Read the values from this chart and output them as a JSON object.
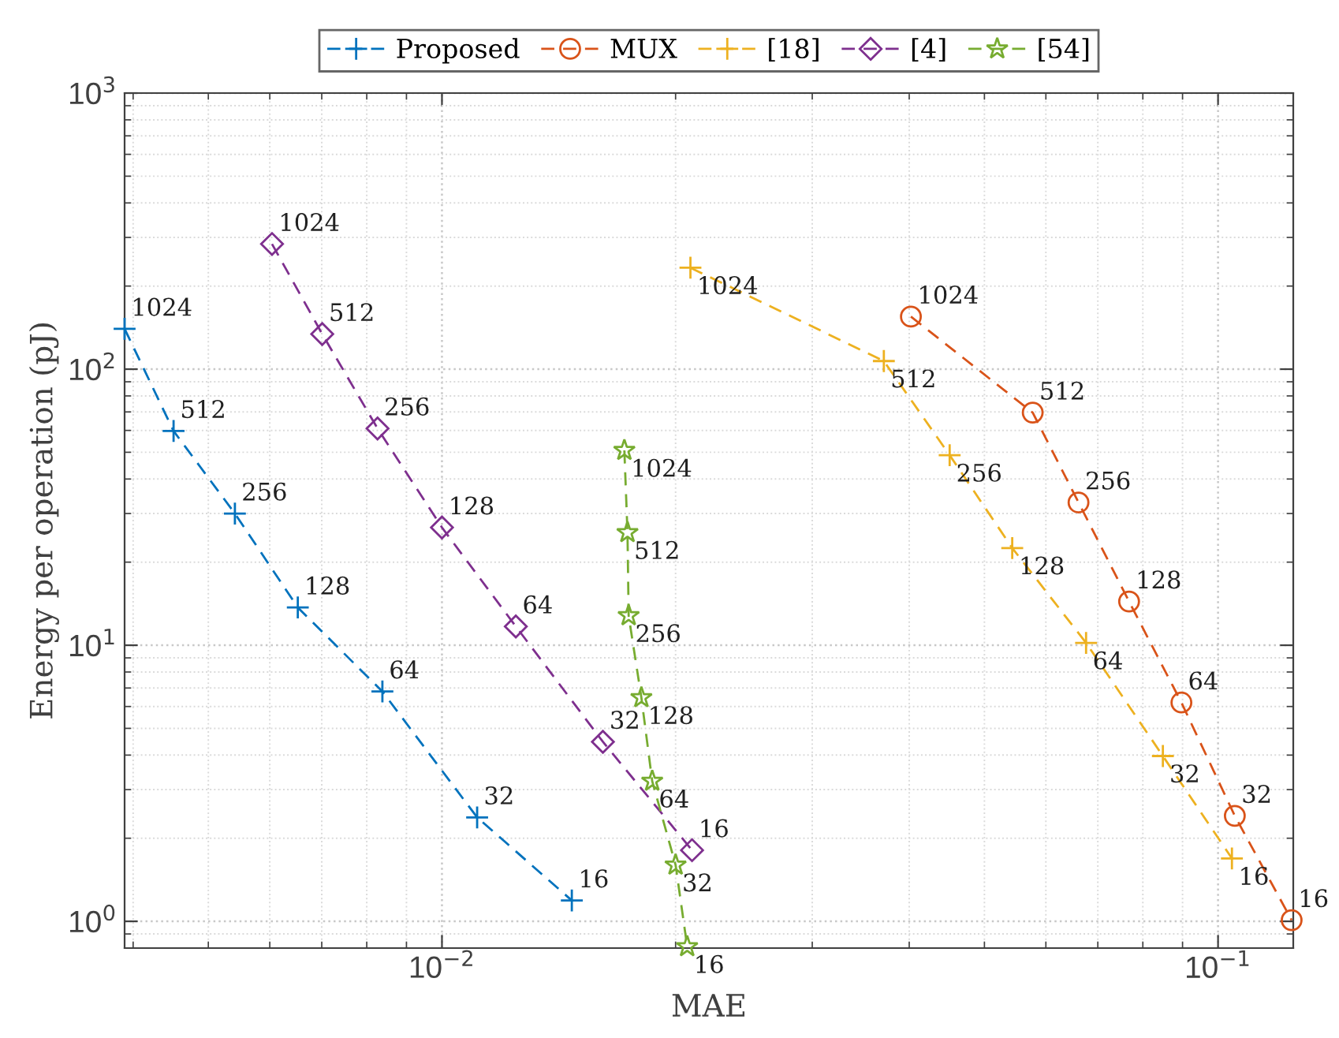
{
  "chart_data": {
    "type": "line",
    "xlabel": "MAE",
    "ylabel": "Energy per operation (pJ)",
    "log": "xy",
    "xlim": [
      0.0039,
      0.125
    ],
    "ylim": [
      0.8,
      1000
    ],
    "xticks": [
      {
        "value": 0.01,
        "label": "10$^{−2}$"
      },
      {
        "value": 0.1,
        "label": "10$^{−1}$"
      }
    ],
    "yticks": [
      {
        "value": 1,
        "label": "10$^{0}$"
      },
      {
        "value": 10,
        "label": "10$^{1}$"
      },
      {
        "value": 100,
        "label": "10$^{2}$"
      },
      {
        "value": 1000,
        "label": "10$^{3}$"
      }
    ],
    "grid": true,
    "legend": "top",
    "line_style": "dashed",
    "series": [
      {
        "name": "Proposed",
        "color": "#0072bd",
        "marker": "cross",
        "x": [
          0.0039,
          0.00451,
          0.00541,
          0.00652,
          0.00838,
          0.0111,
          0.0147
        ],
        "values": [
          140,
          59.7,
          30,
          13.7,
          6.8,
          2.38,
          1.19
        ]
      },
      {
        "name": "MUX",
        "color": "#d95319",
        "marker": "circle",
        "x": [
          0.0402,
          0.0577,
          0.0661,
          0.0768,
          0.0897,
          0.1051,
          0.1244
        ],
        "values": [
          155,
          69.6,
          32.9,
          14.4,
          6.2,
          2.41,
          1.01
        ]
      },
      {
        "name": "[18]",
        "color": "#edb120",
        "marker": "cross",
        "x": [
          0.0209,
          0.0371,
          0.0451,
          0.0543,
          0.0676,
          0.0849,
          0.1042
        ],
        "values": [
          233,
          107,
          48.8,
          22.5,
          10.2,
          3.97,
          1.69
        ]
      },
      {
        "name": "[4]",
        "color": "#7e2f8e",
        "marker": "diamond",
        "x": [
          0.00604,
          0.00701,
          0.00826,
          0.01,
          0.01245,
          0.01612,
          0.021
        ],
        "values": [
          284,
          134,
          61,
          26.7,
          11.7,
          4.47,
          1.81
        ]
      },
      {
        "name": "[54]",
        "color": "#77ac30",
        "marker": "star",
        "x": [
          0.01718,
          0.01734,
          0.0174,
          0.01807,
          0.01866,
          0.02,
          0.0207
        ],
        "values": [
          50.8,
          25.6,
          12.8,
          6.46,
          3.22,
          1.6,
          0.81
        ]
      }
    ],
    "annotations": [
      {
        "text": "1024",
        "x": 0.0039,
        "y": 140
      },
      {
        "text": "512",
        "x": 0.00451,
        "y": 59.7
      },
      {
        "text": "256",
        "x": 0.00541,
        "y": 30
      },
      {
        "text": "128",
        "x": 0.00652,
        "y": 13.7
      },
      {
        "text": "64",
        "x": 0.00838,
        "y": 6.8
      },
      {
        "text": "32",
        "x": 0.0111,
        "y": 2.38
      },
      {
        "text": "16",
        "x": 0.0147,
        "y": 1.19
      },
      {
        "text": "1024",
        "x": 0.0402,
        "y": 155
      },
      {
        "text": "512",
        "x": 0.0577,
        "y": 69.6
      },
      {
        "text": "256",
        "x": 0.0661,
        "y": 32.9
      },
      {
        "text": "128",
        "x": 0.0768,
        "y": 14.4
      },
      {
        "text": "64",
        "x": 0.0897,
        "y": 6.2
      },
      {
        "text": "32",
        "x": 0.1051,
        "y": 2.41
      },
      {
        "text": "16",
        "x": 0.1244,
        "y": 1.01
      },
      {
        "text": "1024",
        "x": 0.0209,
        "y": 233
      },
      {
        "text": "512",
        "x": 0.0371,
        "y": 107
      },
      {
        "text": "256",
        "x": 0.0451,
        "y": 48.8
      },
      {
        "text": "128",
        "x": 0.0543,
        "y": 22.5
      },
      {
        "text": "64",
        "x": 0.0676,
        "y": 10.2
      },
      {
        "text": "32",
        "x": 0.0849,
        "y": 3.97
      },
      {
        "text": "16",
        "x": 0.1042,
        "y": 1.69
      },
      {
        "text": "1024",
        "x": 0.00604,
        "y": 284
      },
      {
        "text": "512",
        "x": 0.00701,
        "y": 134
      },
      {
        "text": "256",
        "x": 0.00826,
        "y": 61
      },
      {
        "text": "128",
        "x": 0.01,
        "y": 26.7
      },
      {
        "text": "64",
        "x": 0.01245,
        "y": 11.7
      },
      {
        "text": "32",
        "x": 0.01612,
        "y": 4.47
      },
      {
        "text": "16",
        "x": 0.021,
        "y": 1.81
      },
      {
        "text": "1024",
        "x": 0.01718,
        "y": 50.8
      },
      {
        "text": "512",
        "x": 0.01734,
        "y": 25.6
      },
      {
        "text": "256",
        "x": 0.0174,
        "y": 12.8
      },
      {
        "text": "128",
        "x": 0.01807,
        "y": 6.46
      },
      {
        "text": "64",
        "x": 0.01866,
        "y": 3.22
      },
      {
        "text": "32",
        "x": 0.02,
        "y": 1.6
      },
      {
        "text": "16",
        "x": 0.0207,
        "y": 0.81
      }
    ]
  }
}
